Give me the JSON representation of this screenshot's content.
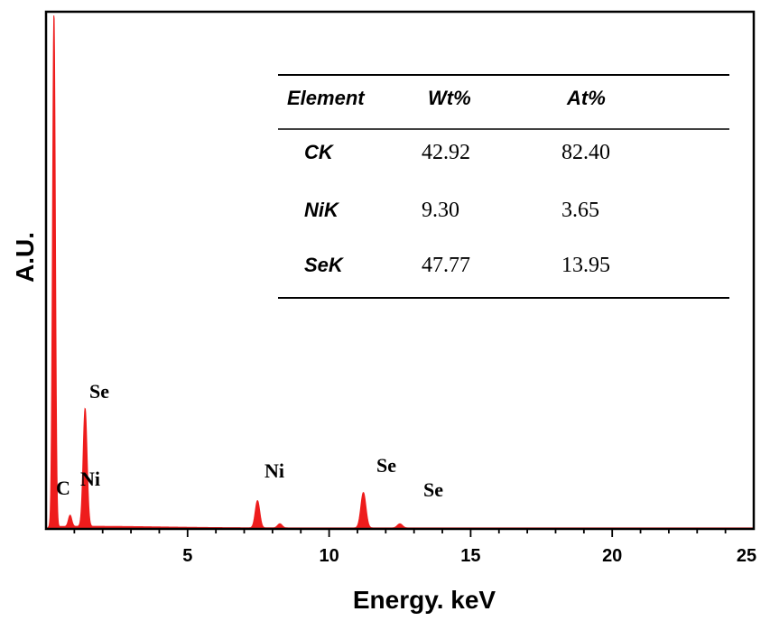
{
  "chart_data": {
    "type": "area",
    "xlabel": "Energy. keV",
    "ylabel": "A.U.",
    "xlim": [
      0,
      25
    ],
    "xticks": [
      5,
      10,
      15,
      20,
      25
    ],
    "color": "#ee1c1c",
    "grid": false,
    "series": [
      {
        "peaks": [
          {
            "label": "C",
            "x": 0.28,
            "height": 1.0,
            "width": 0.05
          },
          {
            "label": "Ni",
            "x": 0.85,
            "height": 0.022,
            "width": 0.06
          },
          {
            "label": "Se",
            "x": 1.38,
            "height": 0.23,
            "width": 0.07
          },
          {
            "label": "Ni",
            "x": 7.47,
            "height": 0.053,
            "width": 0.08
          },
          {
            "label": "",
            "x": 8.26,
            "height": 0.008,
            "width": 0.08
          },
          {
            "label": "Se",
            "x": 11.21,
            "height": 0.069,
            "width": 0.09
          },
          {
            "label": "Se",
            "x": 12.5,
            "height": 0.008,
            "width": 0.09
          }
        ]
      }
    ],
    "peak_labels": [
      "C",
      "Ni",
      "Se",
      "Ni",
      "Se",
      "Se"
    ],
    "table": {
      "headers": [
        "Element",
        "Wt%",
        "At%"
      ],
      "rows": [
        {
          "element": "CK",
          "wt": "42.92",
          "at": "82.40"
        },
        {
          "element": "NiK",
          "wt": "9.30",
          "at": "3.65"
        },
        {
          "element": "SeK",
          "wt": "47.77",
          "at": "13.95"
        }
      ]
    }
  }
}
